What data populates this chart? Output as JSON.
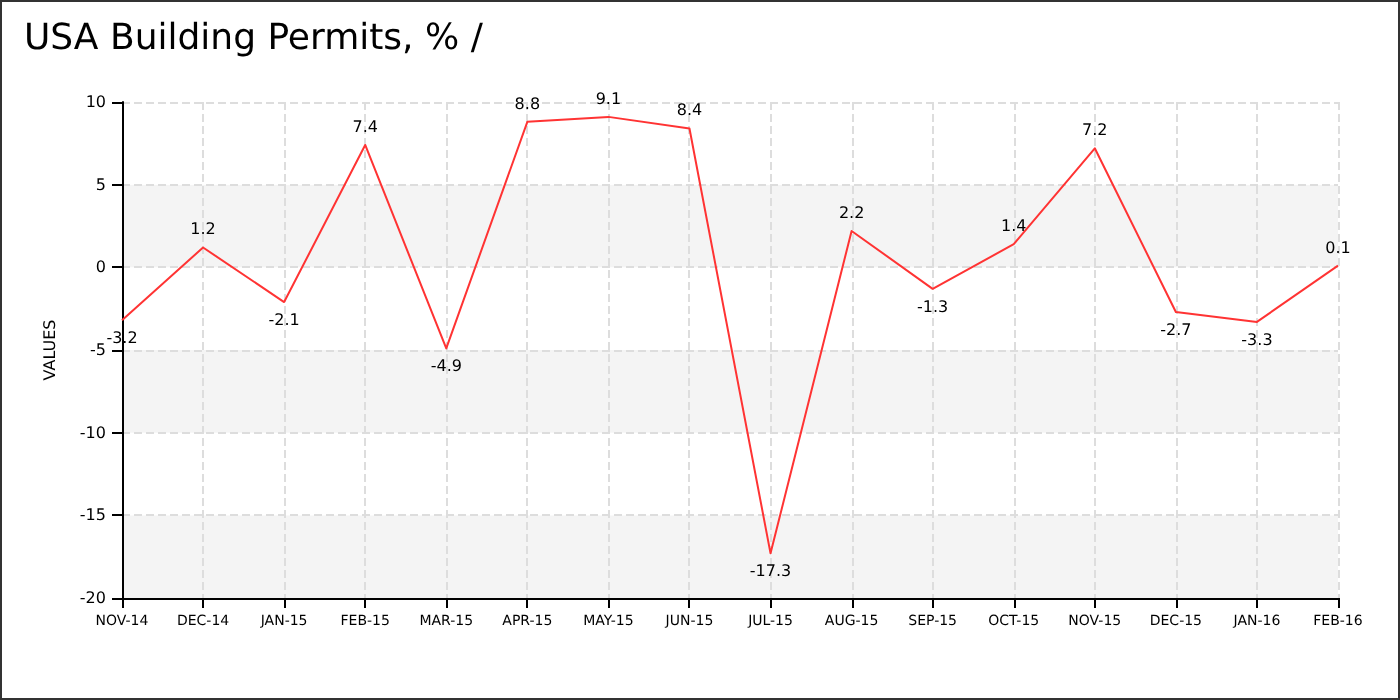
{
  "chart_data": {
    "type": "line",
    "title": "USA Building Permits, % /",
    "ylabel": "VALUES",
    "categories": [
      "NOV-14",
      "DEC-14",
      "JAN-15",
      "FEB-15",
      "MAR-15",
      "APR-15",
      "MAY-15",
      "JUN-15",
      "JUL-15",
      "AUG-15",
      "SEP-15",
      "OCT-15",
      "NOV-15",
      "DEC-15",
      "JAN-16",
      "FEB-16"
    ],
    "series": [
      {
        "color": "#ff3333",
        "values": [
          -3.2,
          1.2,
          -2.1,
          7.4,
          -4.9,
          8.8,
          9.1,
          8.4,
          -17.3,
          2.2,
          -1.3,
          1.4,
          7.2,
          -2.7,
          -3.3,
          0.1
        ]
      }
    ],
    "ylim": [
      -20,
      10
    ],
    "yticks": [
      -20,
      -15,
      -10,
      -5,
      0,
      5,
      10
    ],
    "grid": true,
    "data_labels": true
  }
}
